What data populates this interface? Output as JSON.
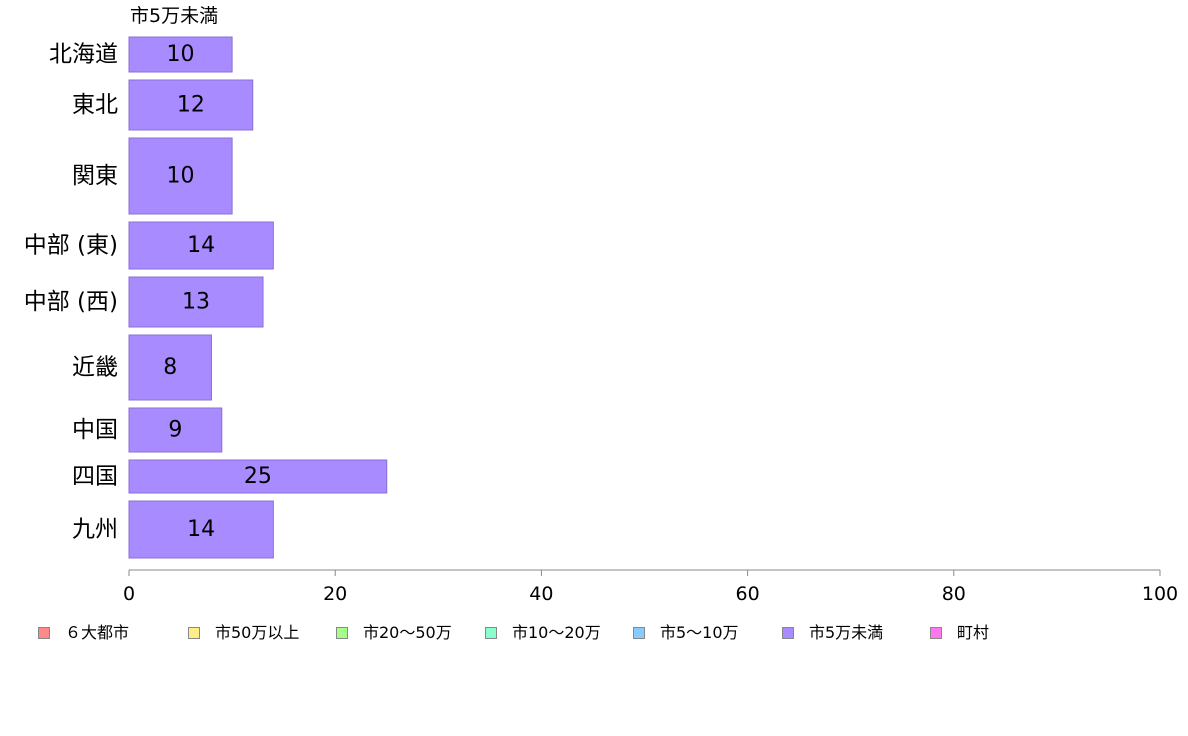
{
  "chart_data": {
    "type": "bar",
    "orientation": "horizontal",
    "subtitle": "市5万未満",
    "categories": [
      "北海道",
      "東北",
      "関東",
      "中部 (東)",
      "中部 (西)",
      "近畿",
      "中国",
      "四国",
      "九州"
    ],
    "values": [
      10,
      12,
      10,
      14,
      13,
      8,
      9,
      25,
      14
    ],
    "value_labels": [
      "10",
      "12",
      "10",
      "14",
      "13",
      "8",
      "9",
      "25",
      "14"
    ],
    "bar_color": "#a88bff",
    "bar_border_color": "#8a6fd6",
    "xlim": [
      0,
      100
    ],
    "x_ticks": [
      0,
      20,
      40,
      60,
      80,
      100
    ],
    "x_tick_labels": [
      "0",
      "20",
      "40",
      "60",
      "80",
      "100"
    ],
    "grid": false,
    "legend_placement": "bottom",
    "legend": [
      {
        "label": "６大都市",
        "color": "#ff8888"
      },
      {
        "label": "市50万以上",
        "color": "#ffee88"
      },
      {
        "label": "市20〜50万",
        "color": "#a6ff8a"
      },
      {
        "label": "市10〜20万",
        "color": "#88ffcc"
      },
      {
        "label": "市5〜10万",
        "color": "#88ccff"
      },
      {
        "label": "市5万未満",
        "color": "#a88bff"
      },
      {
        "label": "町村",
        "color": "#ff77ee"
      }
    ]
  }
}
